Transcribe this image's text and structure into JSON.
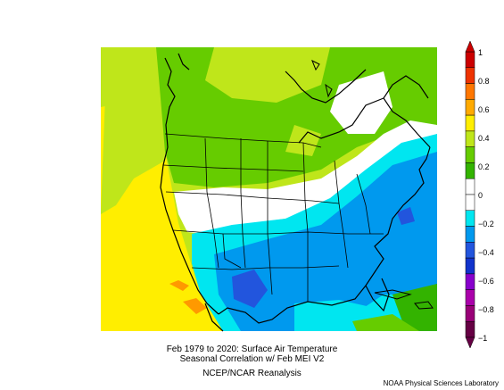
{
  "caption": {
    "line1": "Feb 1979 to 2020: Surface Air Temperature",
    "line2": "Seasonal Correlation w/ Feb MEI V2",
    "line3": "NCEP/NCAR Reanalysis"
  },
  "credit": "NOAA Physical Sciences Laboratory",
  "colorbar": {
    "ticks": [
      "1",
      "0.8",
      "0.6",
      "0.4",
      "0.2",
      "0",
      "−0.2",
      "−0.4",
      "−0.6",
      "−0.8",
      "−1"
    ],
    "colors": [
      "#cc0000",
      "#ee3300",
      "#ff7700",
      "#ffaa00",
      "#ffee00",
      "#bfe61a",
      "#66cc00",
      "#33b300",
      "#ffffff",
      "#ffffff",
      "#00e6f0",
      "#0099ee",
      "#2255dd",
      "#1133cc",
      "#8800cc",
      "#aa00aa",
      "#990077",
      "#660044"
    ]
  }
}
